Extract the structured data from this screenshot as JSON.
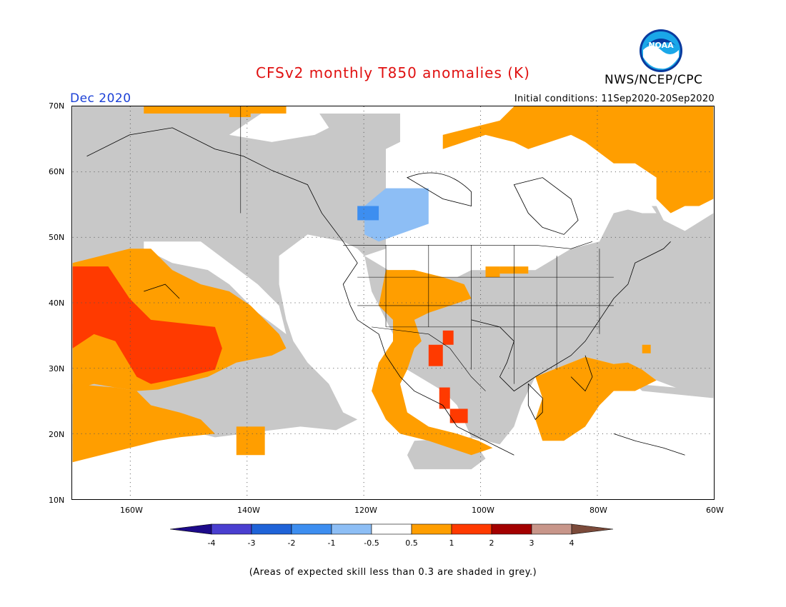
{
  "title": "CFSv2 monthly T850 anomalies (K)",
  "agency": "NWS/NCEP/CPC",
  "logo_text": "NOAA",
  "month": "Dec 2020",
  "initial_conditions": "Initial conditions: 11Sep2020-20Sep2020",
  "footnote": "(Areas of expected skill less than 0.3 are shaded in grey.)",
  "lat_labels": [
    "70N",
    "60N",
    "50N",
    "40N",
    "30N",
    "20N",
    "10N"
  ],
  "lon_labels": [
    "160W",
    "140W",
    "120W",
    "100W",
    "80W",
    "60W"
  ],
  "colorbar": {
    "labels": [
      "-4",
      "-3",
      "-2",
      "-1",
      "-0.5",
      "0.5",
      "1",
      "2",
      "3",
      "4"
    ],
    "colors": [
      "#1d0a8a",
      "#4a3fd0",
      "#1f63d8",
      "#3d8ef0",
      "#8dbef5",
      "#ffffff",
      "#ff9e00",
      "#ff3a00",
      "#a30000",
      "#c8968a",
      "#7b4a3a"
    ]
  },
  "colors": {
    "grey_low_skill": "#c8c8c8",
    "anom_0.5_1": "#ff9e00",
    "anom_1_2": "#ff3a00",
    "anom_neg_0.5_1": "#8dbef5",
    "anom_neg_1_2": "#3d8ef0"
  }
}
